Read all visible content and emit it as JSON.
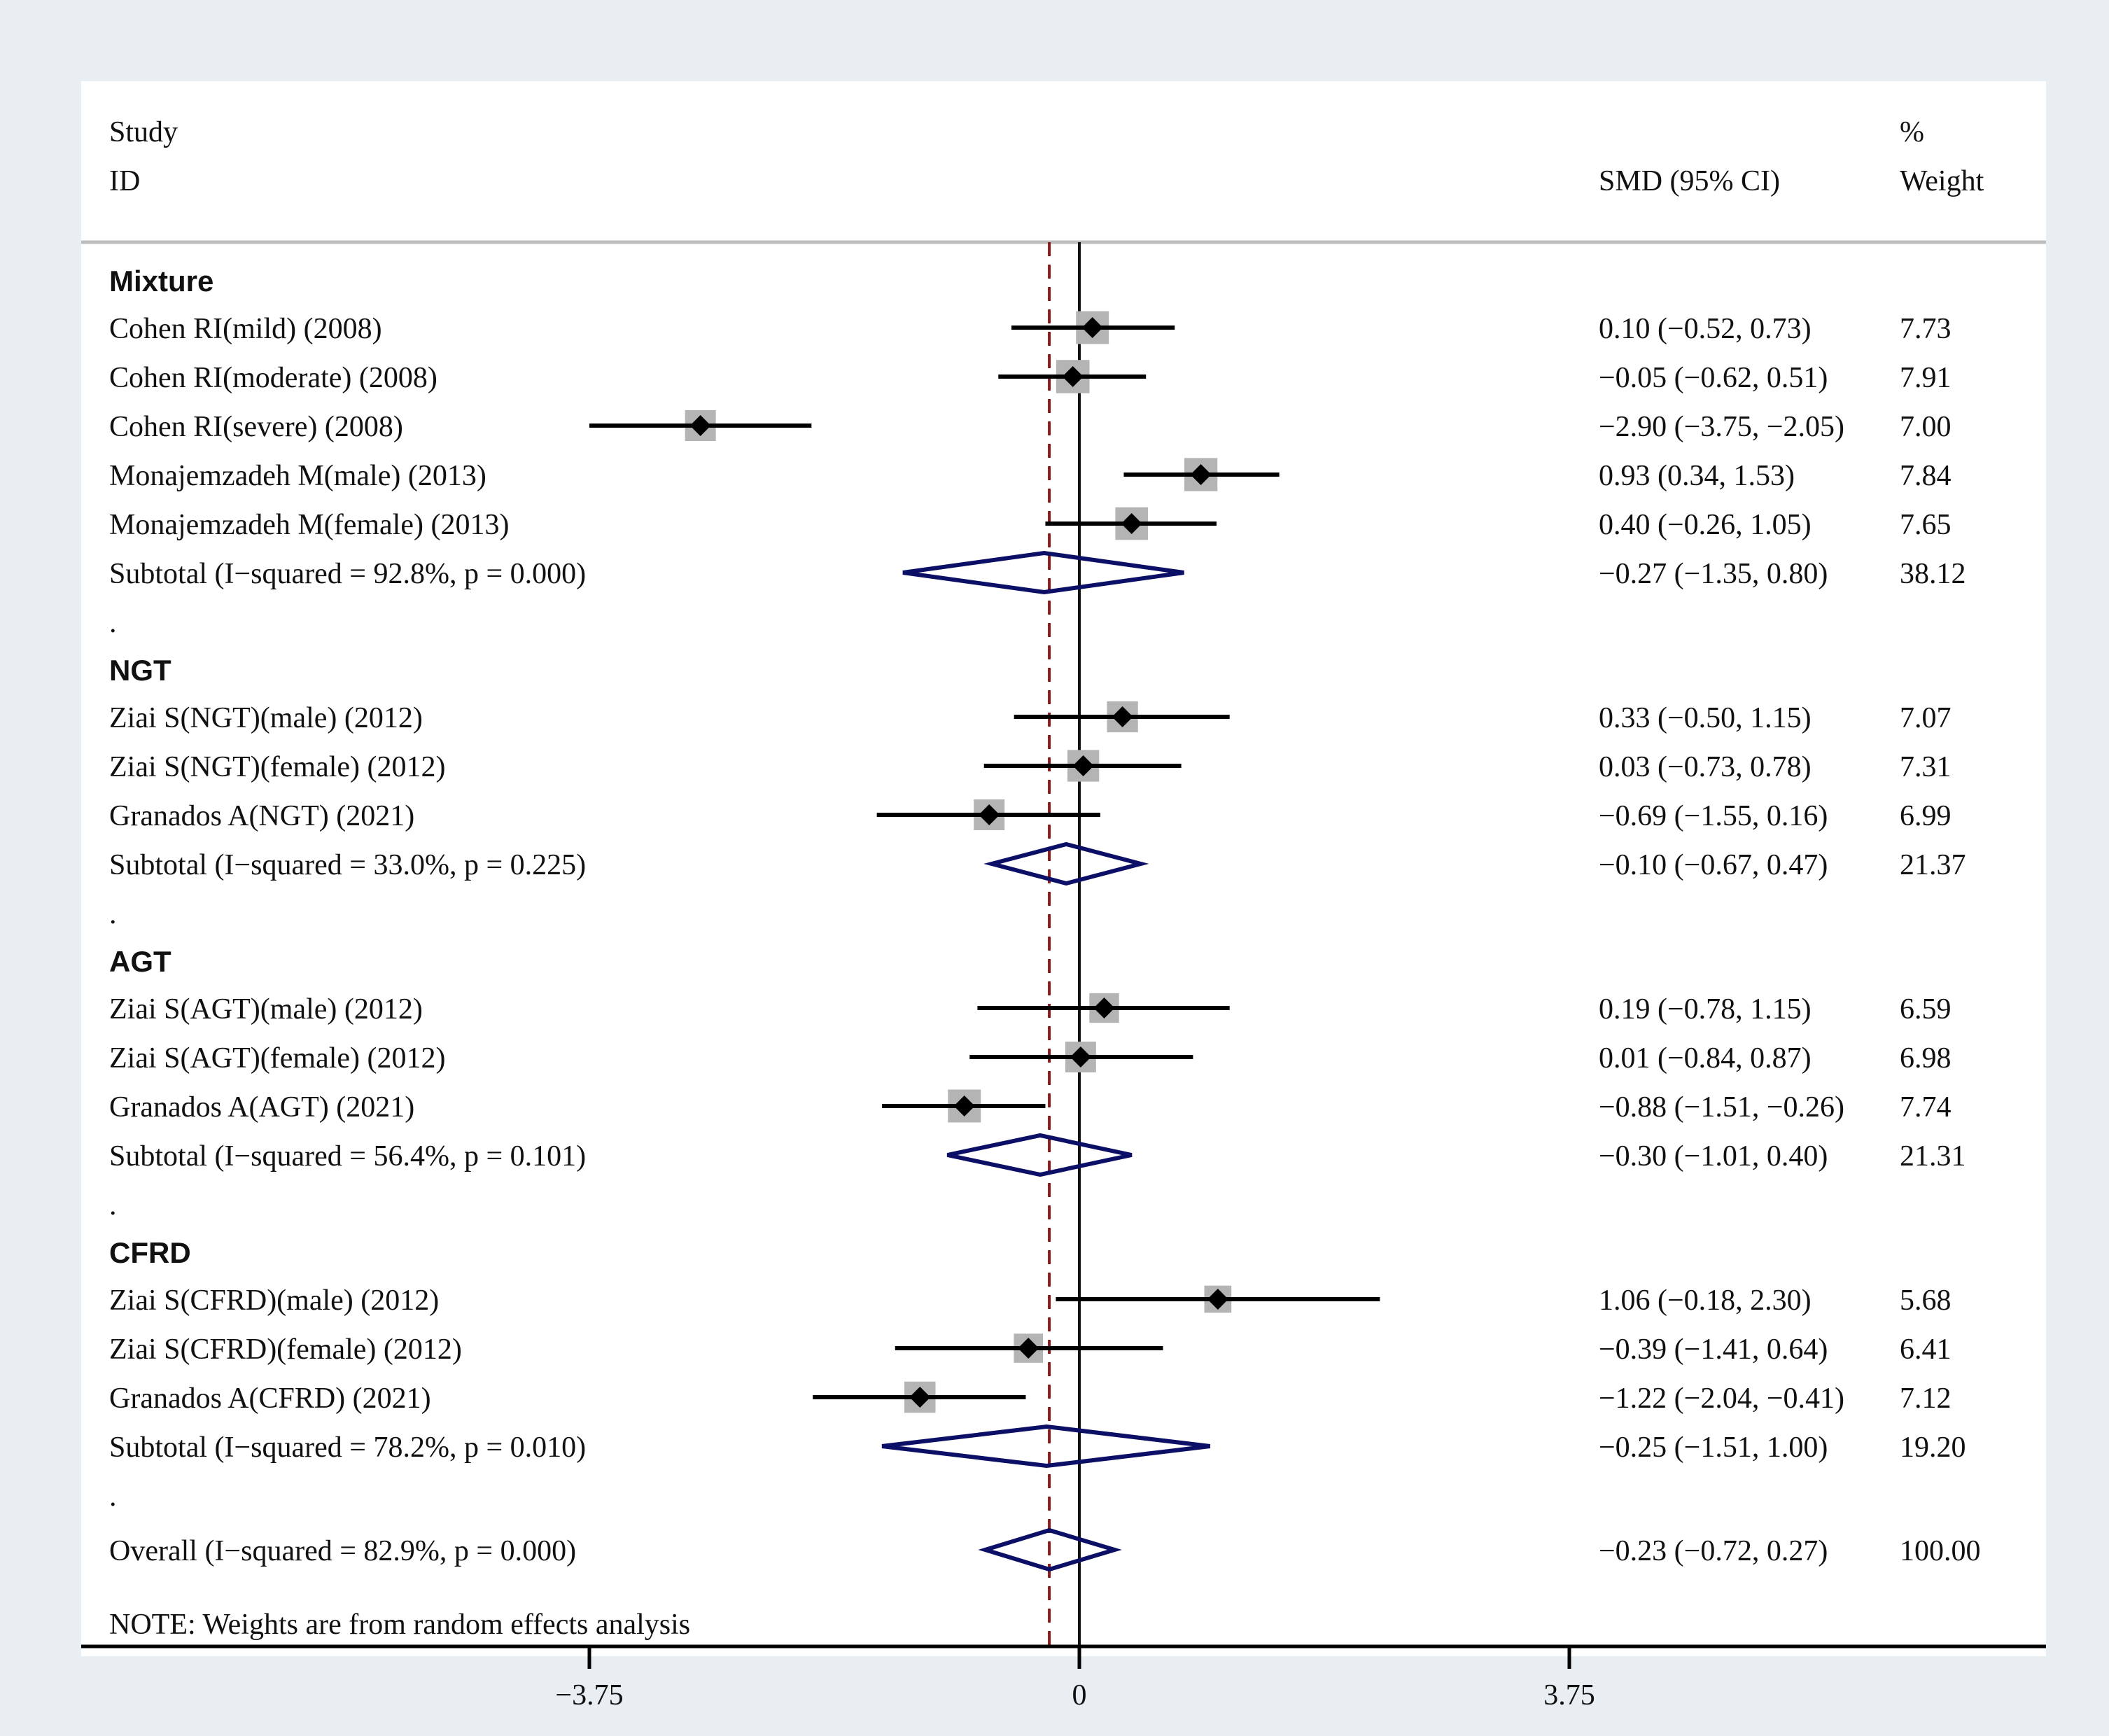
{
  "chart_data": {
    "type": "forest",
    "header": {
      "study_line1": "Study",
      "study_line2": "ID",
      "effect_label": "SMD (95% CI)",
      "weight_line1": "%",
      "weight_line2": "Weight"
    },
    "x_ticks": [
      -3.75,
      0,
      3.75
    ],
    "x_tick_labels": [
      "−3.75",
      "0",
      "3.75"
    ],
    "xlim": [
      -7.5,
      7.5
    ],
    "null_line": 0,
    "overall_effect": -0.23,
    "colors": {
      "background": "#e8eef1",
      "panel": "#ffffff",
      "diamond": "#0c0f66",
      "dashed_line": "#8b1a1a",
      "weight_box": "#b4b4b4"
    },
    "groups": [
      {
        "name": "Mixture",
        "studies": [
          {
            "label": "Cohen RI(mild) (2008)",
            "est": 0.1,
            "lo": -0.52,
            "hi": 0.73,
            "ci_text": "0.10 (−0.52, 0.73)",
            "weight": "7.73"
          },
          {
            "label": "Cohen RI(moderate) (2008)",
            "est": -0.05,
            "lo": -0.62,
            "hi": 0.51,
            "ci_text": "−0.05 (−0.62, 0.51)",
            "weight": "7.91"
          },
          {
            "label": "Cohen RI(severe) (2008)",
            "est": -2.9,
            "lo": -3.75,
            "hi": -2.05,
            "ci_text": "−2.90 (−3.75, −2.05)",
            "weight": "7.00"
          },
          {
            "label": "Monajemzadeh M(male) (2013)",
            "est": 0.93,
            "lo": 0.34,
            "hi": 1.53,
            "ci_text": "0.93 (0.34, 1.53)",
            "weight": "7.84"
          },
          {
            "label": "Monajemzadeh M(female) (2013)",
            "est": 0.4,
            "lo": -0.26,
            "hi": 1.05,
            "ci_text": "0.40 (−0.26, 1.05)",
            "weight": "7.65"
          }
        ],
        "subtotal": {
          "label": "Subtotal  (I−squared = 92.8%, p = 0.000)",
          "est": -0.27,
          "lo": -1.35,
          "hi": 0.8,
          "ci_text": "−0.27 (−1.35, 0.80)",
          "weight": "38.12"
        }
      },
      {
        "name": "NGT",
        "studies": [
          {
            "label": "Ziai S(NGT)(male) (2012)",
            "est": 0.33,
            "lo": -0.5,
            "hi": 1.15,
            "ci_text": "0.33 (−0.50, 1.15)",
            "weight": "7.07"
          },
          {
            "label": "Ziai S(NGT)(female) (2012)",
            "est": 0.03,
            "lo": -0.73,
            "hi": 0.78,
            "ci_text": "0.03 (−0.73, 0.78)",
            "weight": "7.31"
          },
          {
            "label": "Granados A(NGT) (2021)",
            "est": -0.69,
            "lo": -1.55,
            "hi": 0.16,
            "ci_text": "−0.69 (−1.55, 0.16)",
            "weight": "6.99"
          }
        ],
        "subtotal": {
          "label": "Subtotal  (I−squared = 33.0%, p = 0.225)",
          "est": -0.1,
          "lo": -0.67,
          "hi": 0.47,
          "ci_text": "−0.10 (−0.67, 0.47)",
          "weight": "21.37"
        }
      },
      {
        "name": "AGT",
        "studies": [
          {
            "label": "Ziai S(AGT)(male) (2012)",
            "est": 0.19,
            "lo": -0.78,
            "hi": 1.15,
            "ci_text": "0.19 (−0.78, 1.15)",
            "weight": "6.59"
          },
          {
            "label": "Ziai S(AGT)(female) (2012)",
            "est": 0.01,
            "lo": -0.84,
            "hi": 0.87,
            "ci_text": "0.01 (−0.84, 0.87)",
            "weight": "6.98"
          },
          {
            "label": "Granados A(AGT) (2021)",
            "est": -0.88,
            "lo": -1.51,
            "hi": -0.26,
            "ci_text": "−0.88 (−1.51, −0.26)",
            "weight": "7.74"
          }
        ],
        "subtotal": {
          "label": "Subtotal  (I−squared = 56.4%, p = 0.101)",
          "est": -0.3,
          "lo": -1.01,
          "hi": 0.4,
          "ci_text": "−0.30 (−1.01, 0.40)",
          "weight": "21.31"
        }
      },
      {
        "name": "CFRD",
        "studies": [
          {
            "label": "Ziai S(CFRD)(male) (2012)",
            "est": 1.06,
            "lo": -0.18,
            "hi": 2.3,
            "ci_text": "1.06 (−0.18, 2.30)",
            "weight": "5.68"
          },
          {
            "label": "Ziai S(CFRD)(female) (2012)",
            "est": -0.39,
            "lo": -1.41,
            "hi": 0.64,
            "ci_text": "−0.39 (−1.41, 0.64)",
            "weight": "6.41"
          },
          {
            "label": "Granados A(CFRD) (2021)",
            "est": -1.22,
            "lo": -2.04,
            "hi": -0.41,
            "ci_text": "−1.22 (−2.04, −0.41)",
            "weight": "7.12"
          }
        ],
        "subtotal": {
          "label": "Subtotal  (I−squared = 78.2%, p = 0.010)",
          "est": -0.25,
          "lo": -1.51,
          "hi": 1.0,
          "ci_text": "−0.25 (−1.51, 1.00)",
          "weight": "19.20"
        }
      }
    ],
    "overall": {
      "label": "Overall  (I−squared = 82.9%, p = 0.000)",
      "est": -0.23,
      "lo": -0.72,
      "hi": 0.27,
      "ci_text": "−0.23 (−0.72, 0.27)",
      "weight": "100.00"
    },
    "separator": ".",
    "note": "NOTE: Weights are from random effects analysis"
  }
}
